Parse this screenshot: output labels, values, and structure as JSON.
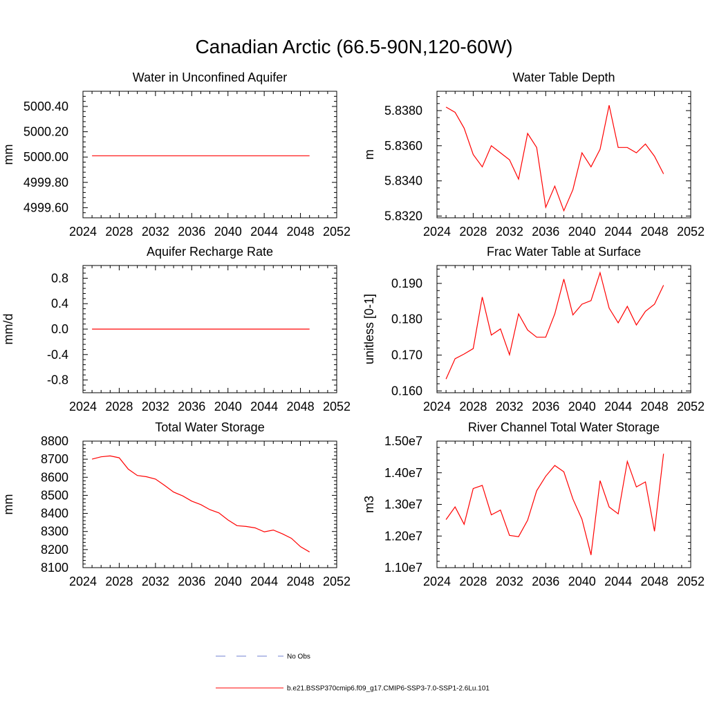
{
  "title": "Canadian Arctic (66.5-90N,120-60W)",
  "colors": {
    "model": "#ff0000",
    "obs": "#7080d0",
    "axis": "#000000"
  },
  "legend": {
    "obs_label": "No Obs",
    "model_label": "b.e21.BSSP370cmip6.f09_g17.CMIP6-SSP3-7.0-SSP1-2.6Lu.101"
  },
  "chart_data": [
    {
      "type": "line",
      "title": "Water in Unconfined Aquifer",
      "ylabel": "mm",
      "xlim": [
        2024,
        2052
      ],
      "xticks": [
        2024,
        2028,
        2032,
        2036,
        2040,
        2044,
        2048,
        2052
      ],
      "ylim": [
        4999.52,
        5000.52
      ],
      "yticks": [
        4999.6,
        4999.8,
        5000.0,
        5000.2,
        5000.4
      ],
      "ytick_labels": [
        "4999.60",
        "4999.80",
        "5000.00",
        "5000.20",
        "5000.40"
      ],
      "x": [
        2025,
        2026,
        2027,
        2028,
        2029,
        2030,
        2031,
        2032,
        2033,
        2034,
        2035,
        2036,
        2037,
        2038,
        2039,
        2040,
        2041,
        2042,
        2043,
        2044,
        2045,
        2046,
        2047,
        2048,
        2049
      ],
      "series": [
        {
          "values": [
            5000.01,
            5000.01,
            5000.01,
            5000.01,
            5000.01,
            5000.01,
            5000.01,
            5000.01,
            5000.01,
            5000.01,
            5000.01,
            5000.01,
            5000.01,
            5000.01,
            5000.01,
            5000.01,
            5000.01,
            5000.01,
            5000.01,
            5000.01,
            5000.01,
            5000.01,
            5000.01,
            5000.01,
            5000.01
          ]
        }
      ]
    },
    {
      "type": "line",
      "title": "Water Table Depth",
      "ylabel": "m",
      "xlim": [
        2024,
        2052
      ],
      "xticks": [
        2024,
        2028,
        2032,
        2036,
        2040,
        2044,
        2048,
        2052
      ],
      "ylim": [
        5.8319,
        5.8391
      ],
      "yticks": [
        5.832,
        5.834,
        5.836,
        5.838
      ],
      "ytick_labels": [
        "5.8320",
        "5.8340",
        "5.8360",
        "5.8380"
      ],
      "x": [
        2025,
        2026,
        2027,
        2028,
        2029,
        2030,
        2031,
        2032,
        2033,
        2034,
        2035,
        2036,
        2037,
        2038,
        2039,
        2040,
        2041,
        2042,
        2043,
        2044,
        2045,
        2046,
        2047,
        2048,
        2049
      ],
      "series": [
        {
          "values": [
            5.8382,
            5.8379,
            5.837,
            5.8355,
            5.8348,
            5.836,
            5.8356,
            5.8352,
            5.8341,
            5.8367,
            5.8359,
            5.8325,
            5.8337,
            5.8323,
            5.8335,
            5.8356,
            5.8348,
            5.8358,
            5.8383,
            5.8359,
            5.8359,
            5.8356,
            5.8361,
            5.8354,
            5.8344
          ]
        }
      ]
    },
    {
      "type": "line",
      "title": "Aquifer Recharge Rate",
      "ylabel": "mm/d",
      "xlim": [
        2024,
        2052
      ],
      "xticks": [
        2024,
        2028,
        2032,
        2036,
        2040,
        2044,
        2048,
        2052
      ],
      "ylim": [
        -1.0,
        1.0
      ],
      "yticks": [
        -0.8,
        -0.4,
        0.0,
        0.4,
        0.8
      ],
      "ytick_labels": [
        "-0.8",
        "-0.4",
        "0.0",
        "0.4",
        "0.8"
      ],
      "x": [
        2025,
        2026,
        2027,
        2028,
        2029,
        2030,
        2031,
        2032,
        2033,
        2034,
        2035,
        2036,
        2037,
        2038,
        2039,
        2040,
        2041,
        2042,
        2043,
        2044,
        2045,
        2046,
        2047,
        2048,
        2049
      ],
      "series": [
        {
          "values": [
            0,
            0,
            0,
            0,
            0,
            0,
            0,
            0,
            0,
            0,
            0,
            0,
            0,
            0,
            0,
            0,
            0,
            0,
            0,
            0,
            0,
            0,
            0,
            0,
            0
          ]
        }
      ]
    },
    {
      "type": "line",
      "title": "Frac Water Table at Surface",
      "ylabel": "unitless [0-1]",
      "xlim": [
        2024,
        2052
      ],
      "xticks": [
        2024,
        2028,
        2032,
        2036,
        2040,
        2044,
        2048,
        2052
      ],
      "ylim": [
        0.1595,
        0.195
      ],
      "yticks": [
        0.16,
        0.17,
        0.18,
        0.19
      ],
      "ytick_labels": [
        "0.160",
        "0.170",
        "0.180",
        "0.190"
      ],
      "x": [
        2025,
        2026,
        2027,
        2028,
        2029,
        2030,
        2031,
        2032,
        2033,
        2034,
        2035,
        2036,
        2037,
        2038,
        2039,
        2040,
        2041,
        2042,
        2043,
        2044,
        2045,
        2046,
        2047,
        2048,
        2049
      ],
      "series": [
        {
          "values": [
            0.1633,
            0.169,
            0.1703,
            0.1718,
            0.1862,
            0.1756,
            0.1773,
            0.1701,
            0.1815,
            0.177,
            0.175,
            0.175,
            0.1815,
            0.1912,
            0.1812,
            0.1842,
            0.1852,
            0.193,
            0.1831,
            0.179,
            0.1836,
            0.1784,
            0.1822,
            0.1842,
            0.1895
          ]
        }
      ]
    },
    {
      "type": "line",
      "title": "Total Water Storage",
      "ylabel": "mm",
      "xlim": [
        2024,
        2052
      ],
      "xticks": [
        2024,
        2028,
        2032,
        2036,
        2040,
        2044,
        2048,
        2052
      ],
      "ylim": [
        8100,
        8800
      ],
      "yticks": [
        8100,
        8200,
        8300,
        8400,
        8500,
        8600,
        8700,
        8800
      ],
      "ytick_labels": [
        "8100",
        "8200",
        "8300",
        "8400",
        "8500",
        "8600",
        "8700",
        "8800"
      ],
      "x": [
        2025,
        2026,
        2027,
        2028,
        2029,
        2030,
        2031,
        2032,
        2033,
        2034,
        2035,
        2036,
        2037,
        2038,
        2039,
        2040,
        2041,
        2042,
        2043,
        2044,
        2045,
        2046,
        2047,
        2048,
        2049
      ],
      "series": [
        {
          "values": [
            8700,
            8713,
            8718,
            8708,
            8645,
            8610,
            8603,
            8590,
            8555,
            8518,
            8497,
            8468,
            8449,
            8421,
            8403,
            8364,
            8332,
            8328,
            8320,
            8298,
            8308,
            8287,
            8262,
            8216,
            8187
          ]
        }
      ]
    },
    {
      "type": "line",
      "title": "River Channel Total Water Storage",
      "ylabel": "m3",
      "xlim": [
        2024,
        2052
      ],
      "xticks": [
        2024,
        2028,
        2032,
        2036,
        2040,
        2044,
        2048,
        2052
      ],
      "ylim": [
        11000000,
        15000000
      ],
      "yticks": [
        11000000,
        12000000,
        13000000,
        14000000,
        15000000
      ],
      "ytick_labels": [
        "1.10e7",
        "1.20e7",
        "1.30e7",
        "1.40e7",
        "1.50e7"
      ],
      "x": [
        2025,
        2026,
        2027,
        2028,
        2029,
        2030,
        2031,
        2032,
        2033,
        2034,
        2035,
        2036,
        2037,
        2038,
        2039,
        2040,
        2041,
        2042,
        2043,
        2044,
        2045,
        2046,
        2047,
        2048,
        2049
      ],
      "series": [
        {
          "values": [
            12520000,
            12920000,
            12370000,
            13500000,
            13600000,
            12670000,
            12820000,
            12020000,
            11980000,
            12500000,
            13430000,
            13890000,
            14230000,
            14030000,
            13170000,
            12530000,
            11400000,
            13750000,
            12920000,
            12700000,
            14360000,
            13550000,
            13710000,
            12150000,
            14600000
          ]
        }
      ]
    }
  ]
}
